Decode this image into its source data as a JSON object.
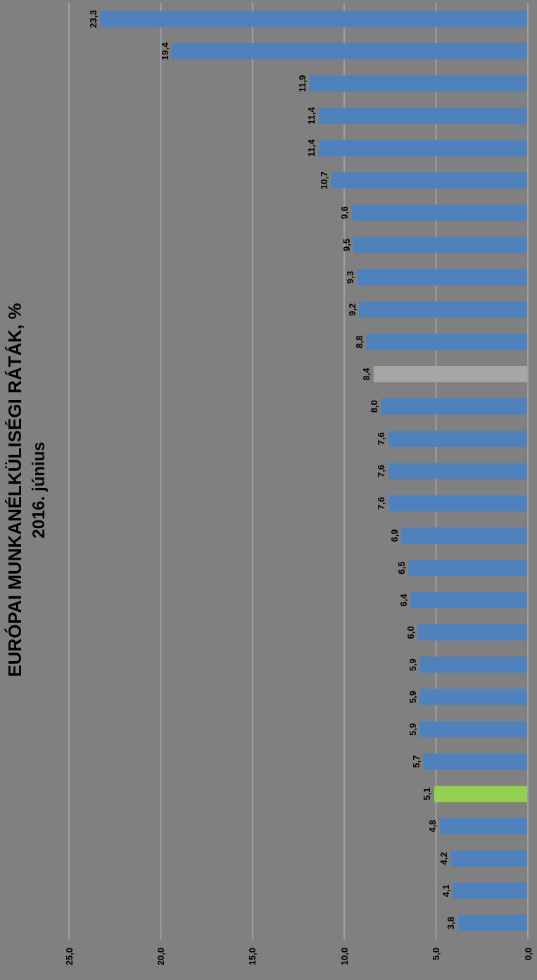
{
  "chart_data": {
    "type": "bar",
    "orientation": "horizontal",
    "title": "EURÓPAI MUNKANÉLKÜLISÉGI RÁTÁK, %",
    "subtitle": "2016. június",
    "categories": [
      null,
      null,
      null,
      null,
      null,
      null,
      null,
      null,
      null,
      null,
      null,
      null,
      null,
      null,
      null,
      null,
      null,
      null,
      null,
      null,
      null,
      null,
      null,
      null,
      null,
      null,
      null,
      null,
      null
    ],
    "values": [
      23.3,
      19.4,
      11.9,
      11.4,
      11.4,
      10.7,
      9.6,
      9.5,
      9.3,
      9.2,
      8.8,
      8.4,
      8.0,
      7.6,
      7.6,
      7.6,
      6.9,
      6.5,
      6.4,
      6.0,
      5.9,
      5.9,
      5.9,
      5.7,
      5.1,
      4.8,
      4.2,
      4.1,
      3.8
    ],
    "value_labels": [
      "23,3",
      "19,4",
      "11,9",
      "11,4",
      "11,4",
      "10,7",
      "9,6",
      "9,5",
      "9,3",
      "9,2",
      "8,8",
      "8,4",
      "8,0",
      "7,6",
      "7,6",
      "7,6",
      "6,9",
      "6,5",
      "6,4",
      "6,0",
      "5,9",
      "5,9",
      "5,9",
      "5,7",
      "5,1",
      "4,8",
      "4,2",
      "4,1",
      "3,8"
    ],
    "colors": [
      "#4f81bd",
      "#4f81bd",
      "#4f81bd",
      "#4f81bd",
      "#4f81bd",
      "#4f81bd",
      "#4f81bd",
      "#4f81bd",
      "#4f81bd",
      "#4f81bd",
      "#4f81bd",
      "#a6a6a6",
      "#4f81bd",
      "#4f81bd",
      "#4f81bd",
      "#4f81bd",
      "#4f81bd",
      "#4f81bd",
      "#4f81bd",
      "#4f81bd",
      "#4f81bd",
      "#4f81bd",
      "#4f81bd",
      "#4f81bd",
      "#92d050",
      "#4f81bd",
      "#4f81bd",
      "#4f81bd",
      "#4f81bd"
    ],
    "xlim": [
      25,
      0
    ],
    "xticks": [
      {
        "value": 25,
        "label": "25,0"
      },
      {
        "value": 20,
        "label": "20,0"
      },
      {
        "value": 15,
        "label": "15,0"
      },
      {
        "value": 10,
        "label": "10,0"
      },
      {
        "value": 5,
        "label": "5,0"
      },
      {
        "value": 0,
        "label": "0,0"
      }
    ],
    "grid": "x",
    "legend": false
  }
}
